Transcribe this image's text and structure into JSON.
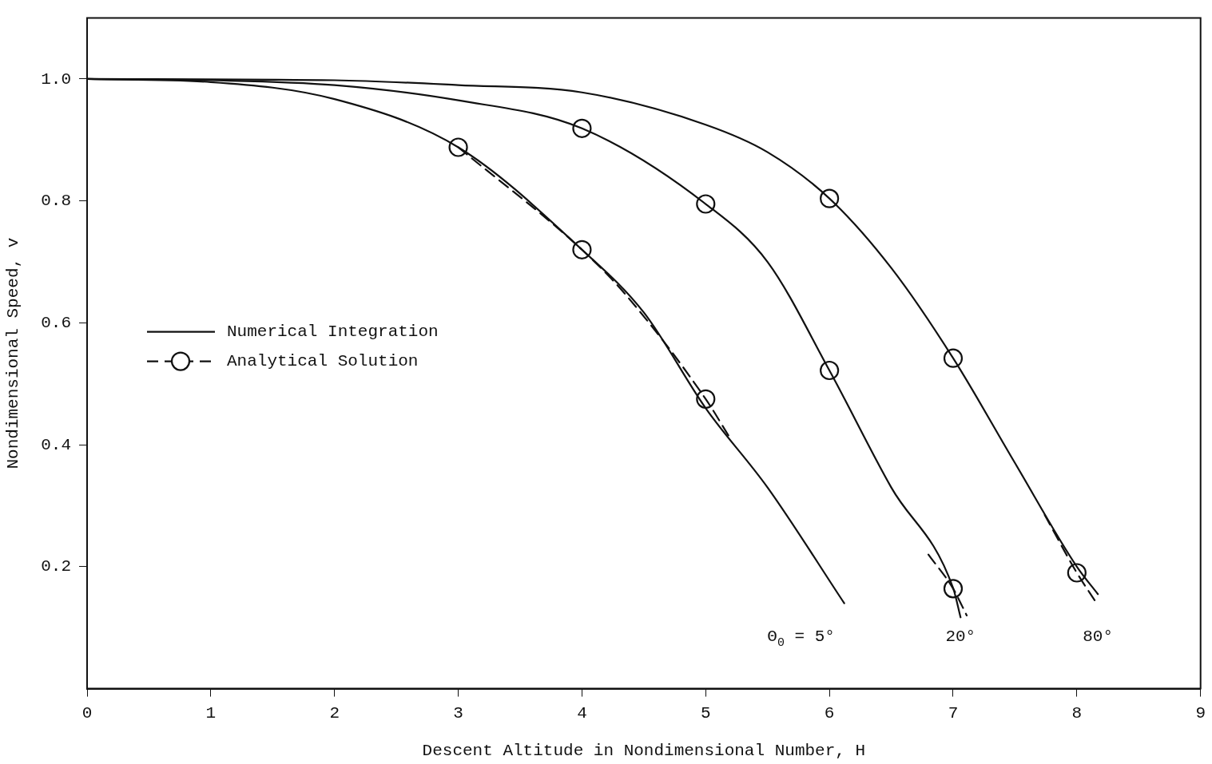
{
  "chart_data": {
    "type": "line",
    "xlabel": "Descent Altitude in Nondimensional Number, H",
    "ylabel": "Nondimensional Speed, v",
    "xlim": [
      0,
      9
    ],
    "xticks": [
      0,
      1,
      2,
      3,
      4,
      5,
      6,
      7,
      8,
      9
    ],
    "ylim": [
      0,
      1.1
    ],
    "yticks": [
      {
        "value": 0.2,
        "label": "0.2"
      },
      {
        "value": 0.4,
        "label": "0.4"
      },
      {
        "value": 0.6,
        "label": "0.6"
      },
      {
        "value": 0.8,
        "label": "0.8"
      },
      {
        "value": 1.0,
        "label": "1.0"
      }
    ],
    "grid": false,
    "legend": "center left",
    "series": [
      {
        "name": "Numerical Integration",
        "line_style": "solid",
        "marker": "none",
        "color": "#111111",
        "x": [
          0,
          1,
          2,
          3,
          4,
          4.5,
          5,
          5.5,
          6.12
        ],
        "values": [
          1.0,
          0.995,
          0.967,
          0.888,
          0.72,
          0.617,
          0.46,
          0.33,
          0.14
        ]
      },
      {
        "line_style": "solid",
        "marker": "none",
        "color": "#111111",
        "x": [
          0,
          1,
          2,
          3,
          4,
          5,
          5.5,
          6,
          6.5,
          7,
          7.06
        ],
        "values": [
          1.0,
          0.998,
          0.99,
          0.965,
          0.919,
          0.795,
          0.7,
          0.522,
          0.33,
          0.165,
          0.117
        ]
      },
      {
        "line_style": "solid",
        "marker": "none",
        "color": "#111111",
        "x": [
          0,
          2,
          3,
          4,
          5,
          5.5,
          6,
          6.5,
          7,
          7.5,
          8,
          8.17
        ],
        "values": [
          1.0,
          0.998,
          0.99,
          0.978,
          0.925,
          0.88,
          0.804,
          0.69,
          0.542,
          0.37,
          0.2,
          0.155
        ]
      },
      {
        "line_style": "dashed",
        "marker": "none",
        "color": "#111111",
        "x": [
          3,
          4,
          4.35,
          5,
          5.2
        ],
        "values": [
          0.888,
          0.72,
          0.647,
          0.475,
          0.41
        ]
      },
      {
        "line_style": "dashed",
        "marker": "none",
        "color": "#111111",
        "x": [
          6.8,
          7,
          7.11
        ],
        "values": [
          0.22,
          0.164,
          0.12
        ]
      },
      {
        "line_style": "dashed",
        "marker": "none",
        "color": "#111111",
        "x": [
          7.74,
          8,
          8.15
        ],
        "values": [
          0.285,
          0.19,
          0.143
        ]
      },
      {
        "name": "Analytical Solution",
        "type": "scatter",
        "line_style": "dashed",
        "marker": "circle",
        "color": "#111111",
        "x": [
          3,
          4,
          5
        ],
        "values": [
          0.888,
          0.72,
          0.475
        ]
      },
      {
        "type": "scatter",
        "marker": "circle",
        "color": "#111111",
        "x": [
          4,
          5,
          6,
          7
        ],
        "values": [
          0.919,
          0.795,
          0.522,
          0.164
        ]
      },
      {
        "type": "scatter",
        "marker": "circle",
        "color": "#111111",
        "x": [
          6,
          7,
          8
        ],
        "values": [
          0.804,
          0.542,
          0.19
        ]
      }
    ],
    "annotations": [
      "Θ$_{0}$ = 5°",
      "20°",
      "80°"
    ]
  }
}
